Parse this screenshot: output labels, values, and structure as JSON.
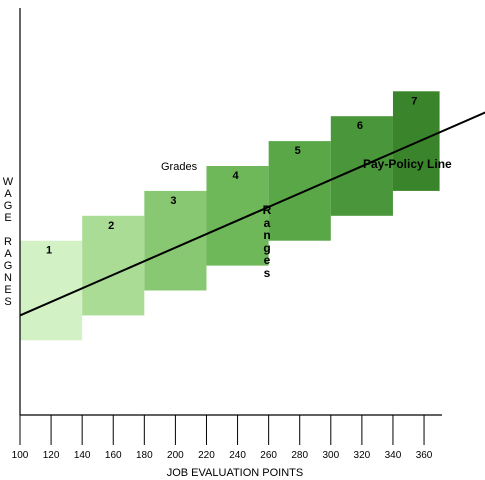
{
  "chart_data": {
    "type": "bar",
    "xlabel": "JOB EVALUATION POINTS",
    "ylabel": "WAGE RAGNES",
    "x_ticks": [
      100,
      120,
      140,
      160,
      180,
      200,
      220,
      240,
      260,
      280,
      300,
      320,
      340,
      360
    ],
    "grades_label": "Grades",
    "ranges_label": "Ranges",
    "policy_line_label": "Pay-Policy Line",
    "grades": [
      {
        "label": "1",
        "x_start": 100,
        "x_end": 140,
        "min": 0.18,
        "max": 0.42,
        "color": "#d2f2c6"
      },
      {
        "label": "2",
        "x_start": 140,
        "x_end": 180,
        "min": 0.24,
        "max": 0.48,
        "color": "#aadc96"
      },
      {
        "label": "3",
        "x_start": 180,
        "x_end": 220,
        "min": 0.3,
        "max": 0.54,
        "color": "#89c873"
      },
      {
        "label": "4",
        "x_start": 220,
        "x_end": 260,
        "min": 0.36,
        "max": 0.6,
        "color": "#6eb85a"
      },
      {
        "label": "5",
        "x_start": 260,
        "x_end": 300,
        "min": 0.42,
        "max": 0.66,
        "color": "#5aa748"
      },
      {
        "label": "6",
        "x_start": 300,
        "x_end": 340,
        "min": 0.48,
        "max": 0.72,
        "color": "#4a963a"
      },
      {
        "label": "7",
        "x_start": 340,
        "x_end": 370,
        "min": 0.54,
        "max": 0.78,
        "color": "#3a852c"
      }
    ],
    "policy_line": {
      "x": [
        100,
        400
      ],
      "y": [
        0.24,
        0.73
      ]
    }
  }
}
